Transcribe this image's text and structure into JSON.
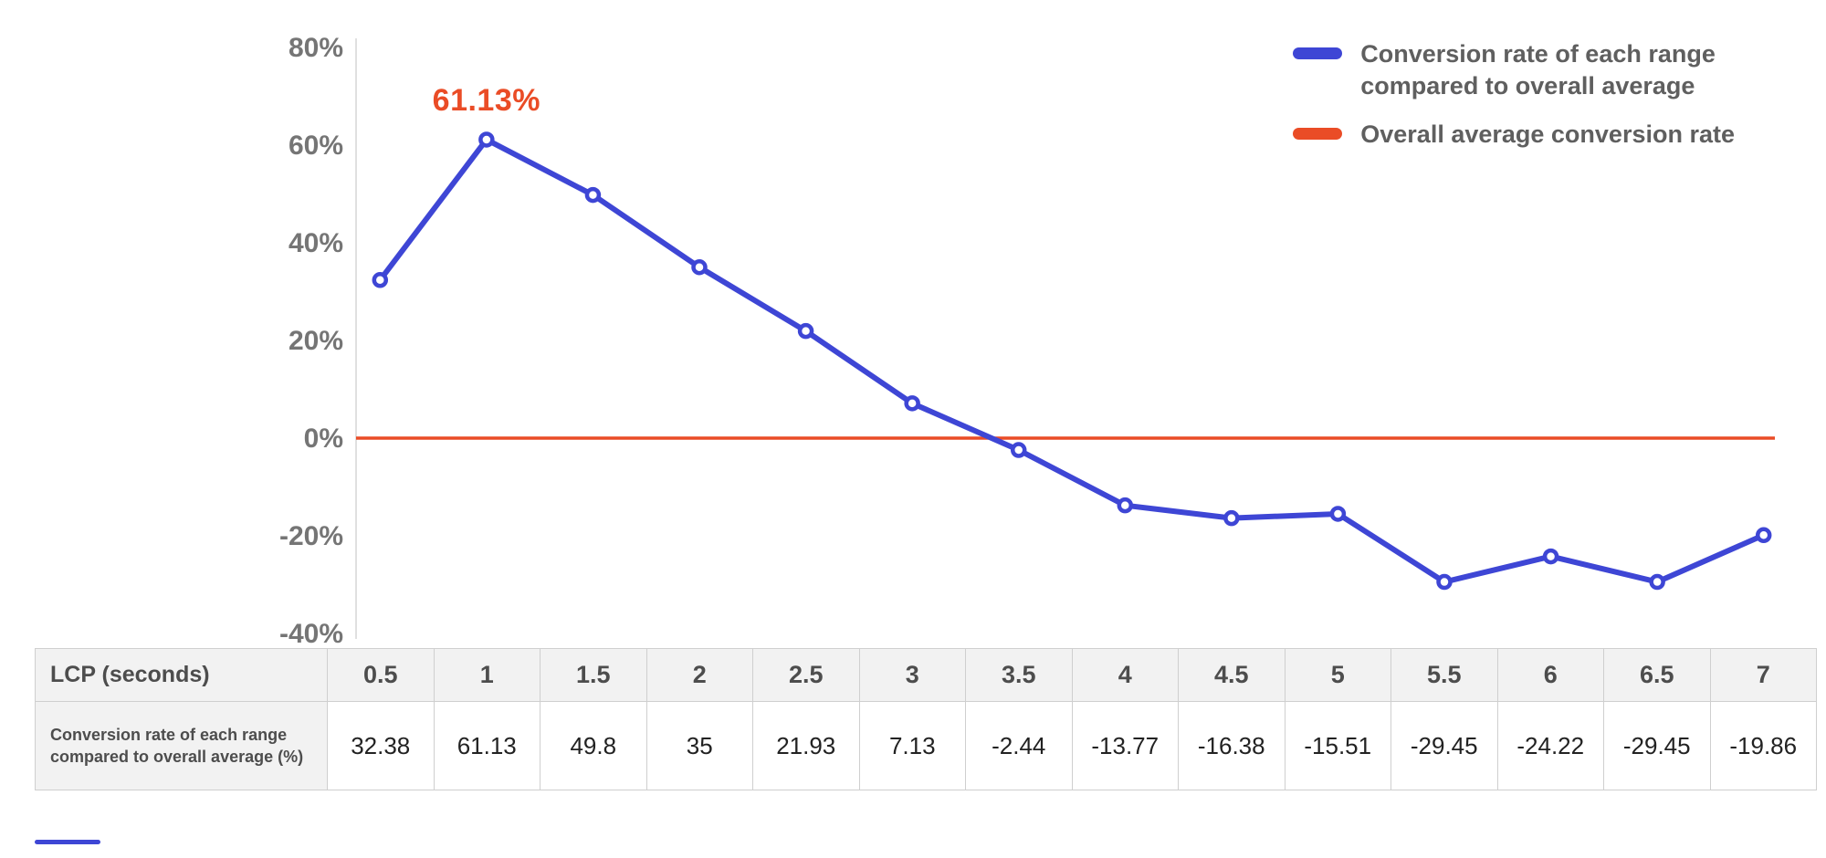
{
  "chart_data": {
    "type": "line",
    "title": "",
    "xlabel": "LCP (seconds)",
    "ylabel": "",
    "x": [
      0.5,
      1,
      1.5,
      2,
      2.5,
      3,
      3.5,
      4,
      4.5,
      5,
      5.5,
      6,
      6.5,
      7
    ],
    "series": [
      {
        "name": "Conversion rate of each range compared to overall average",
        "color": "#3e46d5",
        "values": [
          32.38,
          61.13,
          49.8,
          35,
          21.93,
          7.13,
          -2.44,
          -13.77,
          -16.38,
          -15.51,
          -29.45,
          -24.22,
          -29.45,
          -19.86
        ]
      },
      {
        "name": "Overall average conversion rate",
        "color": "#ea4c26",
        "constant_value": 0
      }
    ],
    "yticks": [
      80,
      60,
      40,
      20,
      0,
      -20,
      -40
    ],
    "ytick_labels": [
      "80%",
      "60%",
      "40%",
      "20%",
      "0%",
      "-20%",
      "-40%"
    ],
    "ylim": [
      -43,
      84
    ],
    "grid": false,
    "legend_position": "top-right",
    "annotation": {
      "text": "61.13%",
      "value": 61.13,
      "x_index": 1,
      "color": "#ea4c26"
    },
    "axis_color": "#e0e0e0",
    "tick_label_color": "#757575"
  },
  "legend": {
    "items": [
      {
        "label": "Conversion rate of each range\ncompared to overall average",
        "color": "#3e46d5"
      },
      {
        "label": "Overall average conversion rate",
        "color": "#ea4c26"
      }
    ]
  },
  "table": {
    "row1_header": "LCP (seconds)",
    "row2_header": "Conversion rate of each range compared to overall average (%)",
    "columns": [
      "0.5",
      "1",
      "1.5",
      "2",
      "2.5",
      "3",
      "3.5",
      "4",
      "4.5",
      "5",
      "5.5",
      "6",
      "6.5",
      "7"
    ],
    "values": [
      "32.38",
      "61.13",
      "49.8",
      "35",
      "21.93",
      "7.13",
      "-2.44",
      "-13.77",
      "-16.38",
      "-15.51",
      "-29.45",
      "-24.22",
      "-29.45",
      "-19.86"
    ]
  }
}
